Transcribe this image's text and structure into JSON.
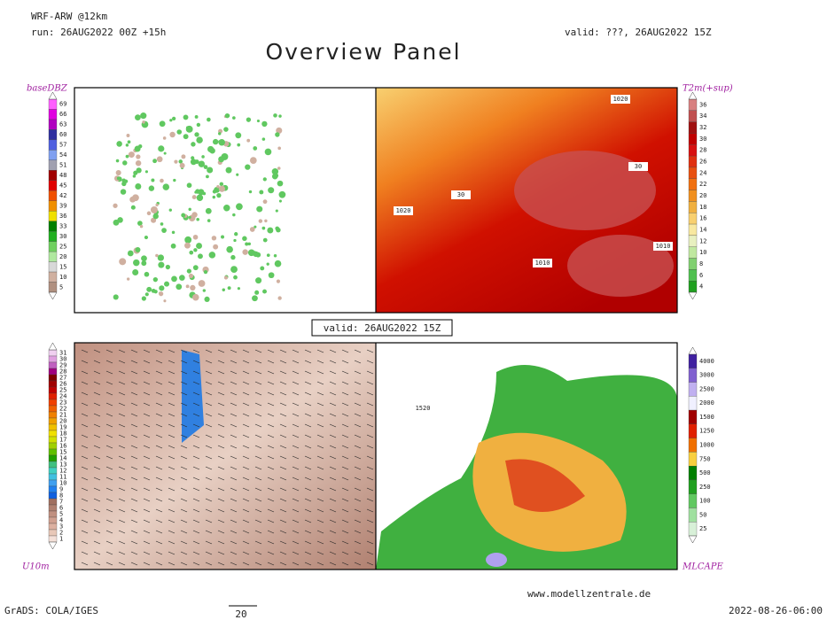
{
  "header": {
    "model": "WRF-ARW @12km",
    "run": "run: 26AUG2022 00Z +15h",
    "valid": "valid: ???, 26AUG2022 15Z",
    "title": "Overview Panel"
  },
  "center_valid": "valid: 26AUG2022 15Z",
  "panels": [
    {
      "label": "baseDBZ",
      "colorbar": [
        69,
        66,
        63,
        60,
        57,
        54,
        51,
        48,
        45,
        42,
        39,
        36,
        33,
        30,
        25,
        20,
        15,
        10,
        5
      ],
      "colors": [
        "#ff60ff",
        "#e000e0",
        "#b000c0",
        "#3030a0",
        "#5060e0",
        "#80a0f0",
        "#a0a0b0",
        "#a00000",
        "#e00000",
        "#f05000",
        "#f09000",
        "#f0e000",
        "#008000",
        "#20b020",
        "#70d060",
        "#b0e8a0",
        "#d8d8d8",
        "#d0b0a0",
        "#b09080"
      ],
      "map_labels": []
    },
    {
      "label": "T2m(+sup)",
      "colorbar": [
        36,
        34,
        32,
        30,
        28,
        26,
        24,
        22,
        20,
        18,
        16,
        14,
        12,
        10,
        8,
        6,
        4
      ],
      "colors": [
        "#d88080",
        "#c05050",
        "#a01010",
        "#c00000",
        "#d81010",
        "#e03010",
        "#e85010",
        "#f07010",
        "#f09020",
        "#f0b040",
        "#f8d070",
        "#f8e8a0",
        "#e8f0c0",
        "#c0e8a0",
        "#80d070",
        "#50c050",
        "#20a020"
      ],
      "map_labels": [
        "1020",
        "1020",
        "1010",
        "1010",
        "30",
        "30"
      ]
    },
    {
      "label": "U10m",
      "colorbar": [
        31,
        30,
        29,
        28,
        27,
        26,
        25,
        24,
        23,
        22,
        21,
        20,
        19,
        18,
        17,
        16,
        15,
        14,
        13,
        12,
        11,
        10,
        9,
        8,
        7,
        6,
        5,
        4,
        3,
        2,
        1
      ],
      "colors": [
        "#f0d0f0",
        "#e0a0e0",
        "#c060c0",
        "#a00080",
        "#800000",
        "#a00000",
        "#c00000",
        "#e02000",
        "#f04000",
        "#f06000",
        "#f08000",
        "#f0a000",
        "#f0c000",
        "#f0e000",
        "#d0e000",
        "#a0d000",
        "#60c000",
        "#20a000",
        "#40c080",
        "#40d0c0",
        "#40c0e0",
        "#40a0f0",
        "#2080f0",
        "#1060e0",
        "#a07060",
        "#b08070",
        "#c09080",
        "#d0a090",
        "#dcb0a0",
        "#e8c8b8",
        "#f4e0d8"
      ],
      "map_labels": []
    },
    {
      "label": "MLCAPE",
      "colorbar": [
        4000,
        3000,
        2500,
        2000,
        1500,
        1250,
        1000,
        750,
        500,
        250,
        100,
        50,
        25
      ],
      "colors": [
        "#4020a0",
        "#8060d0",
        "#c0b0f0",
        "#f0f0ff",
        "#a00000",
        "#e02000",
        "#f07000",
        "#f8d040",
        "#008000",
        "#20a020",
        "#60c860",
        "#a0e0a0",
        "#d8f0d8"
      ],
      "map_labels": [
        "1520"
      ]
    }
  ],
  "footer": {
    "software": "GrADS: COLA/IGES",
    "vector_scale": "20",
    "site": "www.modellzentrale.de",
    "timestamp": "2022-08-26-06:00"
  }
}
